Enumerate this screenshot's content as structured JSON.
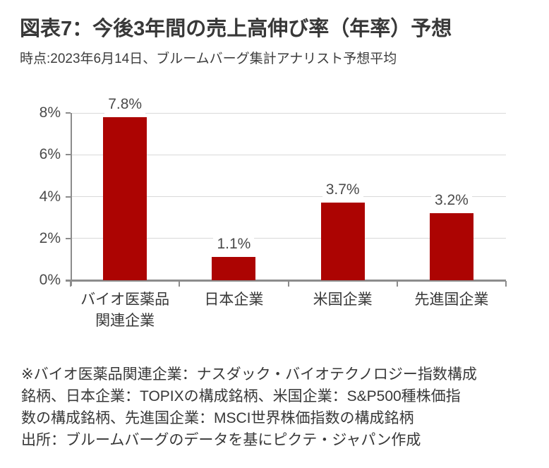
{
  "header": {
    "title": "図表7：今後3年間の売上高伸び率（年率）予想",
    "subtitle": "時点:2023年6月14日、ブルームバーグ集計アナリスト予想平均"
  },
  "chart_data": {
    "type": "bar",
    "categories": [
      "バイオ医薬品\n関連企業",
      "日本企業",
      "米国企業",
      "先進国企業"
    ],
    "values": [
      7.8,
      1.1,
      3.7,
      3.2
    ],
    "data_labels": [
      "7.8%",
      "1.1%",
      "3.7%",
      "3.2%"
    ],
    "title": "図表7：今後3年間の売上高伸び率（年率）予想",
    "xlabel": "",
    "ylabel": "",
    "ylim": [
      0,
      8
    ],
    "ytick_step": 2,
    "ytick_labels": [
      "0%",
      "2%",
      "4%",
      "6%",
      "8%"
    ],
    "grid": true,
    "legend": "none",
    "bar_color": "#ac0402",
    "gridline_color": "#d9d9d9",
    "axis_color": "#8c8c8c",
    "label_color": "#4a4a4a"
  },
  "footnote": {
    "lines": [
      "※バイオ医薬品関連企業：ナスダック・バイオテクノロジー指数構成",
      "銘柄、日本企業：TOPIXの構成銘柄、米国企業：S&P500種株価指",
      "数の構成銘柄、先進国企業：MSCI世界株価指数の構成銘柄",
      "出所：ブルームバーグのデータを基にピクテ・ジャパン作成"
    ]
  }
}
